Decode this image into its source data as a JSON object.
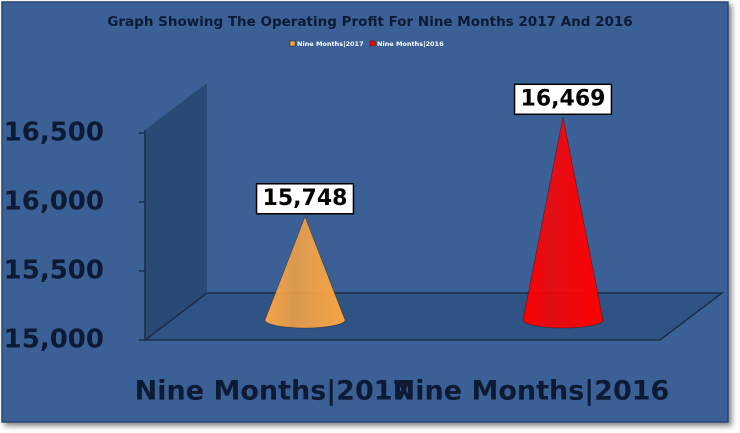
{
  "chart_data": {
    "type": "cone",
    "title": "Graph Showing The Operating Profit For Nine Months 2017 And 2016",
    "categories": [
      "Nine Months|2017",
      "Nine Months|2016"
    ],
    "values": [
      15748,
      16469
    ],
    "value_labels": [
      "15,748",
      "16,469"
    ],
    "colors": [
      "#f7a445",
      "#ff0000"
    ],
    "ylim": [
      15000,
      16500
    ],
    "yticks": [
      {
        "value": 15000,
        "label": "15,000"
      },
      {
        "value": 15500,
        "label": "15,500"
      },
      {
        "value": 16000,
        "label": "16,000"
      },
      {
        "value": 16500,
        "label": "16,500"
      }
    ],
    "legend": "top"
  }
}
